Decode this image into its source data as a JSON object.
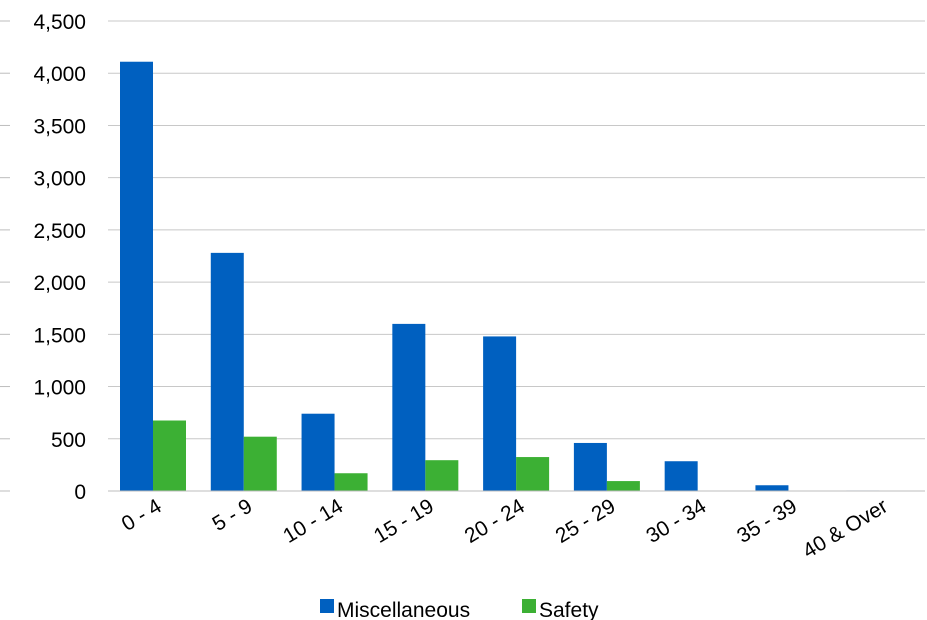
{
  "chart_data": {
    "type": "bar",
    "categories": [
      "0 - 4",
      "5 - 9",
      "10 - 14",
      "15 - 19",
      "20 - 24",
      "25 - 29",
      "30 - 34",
      "35 - 39",
      "40 & Over"
    ],
    "series": [
      {
        "name": "Miscellaneous",
        "color": "#0060c0",
        "values": [
          4110,
          2280,
          740,
          1600,
          1480,
          460,
          285,
          55,
          5
        ]
      },
      {
        "name": "Safety",
        "color": "#3cb034",
        "values": [
          675,
          520,
          170,
          295,
          325,
          95,
          0,
          0,
          0
        ]
      }
    ],
    "title": "",
    "xlabel": "",
    "ylabel": "",
    "ylim": [
      0,
      4500
    ],
    "yticks": [
      0,
      500,
      1000,
      1500,
      2000,
      2500,
      3000,
      3500,
      4000,
      4500
    ],
    "ytick_labels": [
      "0",
      "500",
      "1,000",
      "1,500",
      "2,000",
      "2,500",
      "3,000",
      "3,500",
      "4,000",
      "4,500"
    ],
    "grid": true,
    "legend_position": "bottom"
  }
}
